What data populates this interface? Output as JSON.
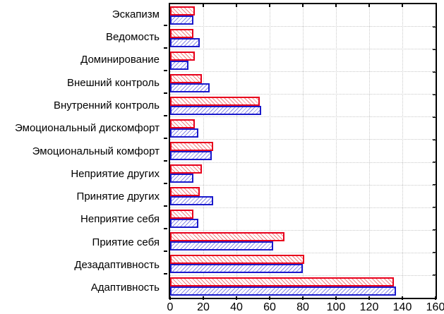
{
  "chart_data": {
    "type": "bar",
    "orientation": "horizontal",
    "title": "",
    "xlabel": "",
    "ylabel": "",
    "xlim": [
      0,
      160
    ],
    "xticks": [
      0,
      20,
      40,
      60,
      80,
      100,
      120,
      140,
      160
    ],
    "grid": "dotted vertical at each xtick, dotted horizontal at category boundaries",
    "legend": "none",
    "categories": [
      "Эскапизм",
      "Ведомость",
      "Доминирование",
      "Внешний контроль",
      "Внутренний контроль",
      "Эмоциональный дискомфорт",
      "Эмоциональный комфорт",
      "Неприятие других",
      "Принятие других",
      "Неприятие себя",
      "Приятие себя",
      "Дезадаптивность",
      "Адаптивность"
    ],
    "series": [
      {
        "name": "red-hatched-series",
        "border_color": "#e8001c",
        "hatch_color": "#f28080",
        "hatch_direction": "backslash",
        "values": [
          15,
          14,
          15,
          19,
          54,
          15,
          26,
          19,
          18,
          14,
          69,
          81,
          135
        ]
      },
      {
        "name": "blue-hatched-series",
        "border_color": "#1a1acc",
        "hatch_color": "#8888e8",
        "hatch_direction": "slash",
        "values": [
          14,
          18,
          11,
          24,
          55,
          17,
          25,
          14,
          26,
          17,
          62,
          80,
          136
        ]
      }
    ]
  }
}
